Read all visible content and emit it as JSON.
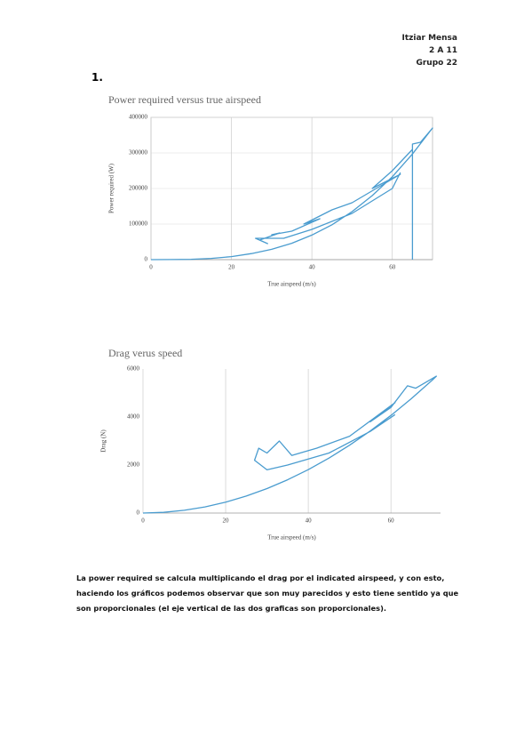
{
  "header": {
    "lines": [
      "Itziar Mensa",
      "2 A 11",
      "Grupo 22"
    ]
  },
  "heading": "1.",
  "chart_data": [
    {
      "type": "line",
      "title": "Power required versus true airspeed",
      "x_label": "True airspeed (m/s)",
      "y_label": "Power required (W)",
      "x": [
        0,
        5,
        10,
        15,
        20,
        25,
        30,
        35,
        40,
        45,
        50,
        55,
        60,
        65,
        70,
        67,
        65,
        65,
        65,
        65,
        60,
        55,
        62,
        50,
        45,
        38,
        42,
        35,
        30,
        32,
        27,
        29,
        26,
        33,
        40,
        50,
        60,
        62
      ],
      "values": [
        0,
        130,
        1100,
        3600,
        8600,
        17000,
        29000,
        46000,
        69000,
        98000,
        135000,
        180000,
        233000,
        297000,
        370000,
        330000,
        325000,
        0,
        null,
        310000,
        250000,
        200000,
        240000,
        160000,
        140000,
        100000,
        115000,
        80000,
        70000,
        75000,
        55000,
        45000,
        60000,
        60000,
        85000,
        130000,
        200000,
        245000
      ],
      "color": "#4a9ccf",
      "xlim": [
        0,
        70
      ],
      "ylim": [
        0,
        400000
      ],
      "xticks": [
        0,
        20,
        40,
        60
      ],
      "yticks": [
        0,
        100000,
        200000,
        300000,
        400000
      ],
      "grid": "both"
    },
    {
      "type": "line",
      "title": "Drag verus speed",
      "x_label": "True airspeed (m/s)",
      "y_label": "Drag (N)",
      "x": [
        0,
        5,
        10,
        15,
        20,
        25,
        30,
        35,
        40,
        45,
        50,
        55,
        60,
        65,
        70,
        71,
        66,
        64,
        60,
        55,
        61,
        50,
        42,
        36,
        33,
        30,
        28,
        27,
        30,
        35,
        45,
        55,
        61
      ],
      "values": [
        0,
        28,
        113,
        254,
        452,
        706,
        1017,
        1384,
        1808,
        2288,
        2825,
        3418,
        4068,
        4774,
        5537,
        5700,
        5200,
        5300,
        4400,
        3800,
        4600,
        3200,
        2700,
        2400,
        3000,
        2500,
        2700,
        2200,
        1800,
        2000,
        2500,
        3400,
        4100
      ],
      "color": "#4a9ccf",
      "xlim": [
        0,
        72
      ],
      "ylim": [
        0,
        6000
      ],
      "xticks": [
        0,
        20,
        40,
        60
      ],
      "yticks": [
        0,
        2000,
        4000,
        6000
      ],
      "grid": "x"
    }
  ],
  "paragraph": {
    "lines": [
      "La power required se calcula multiplicando el drag por el indicated airspeed, y con esto,",
      "haciendo los gráficos podemos observar que son muy parecidos y esto tiene sentido ya que",
      "son proporcionales (el eje vertical de las dos graficas son proporcionales)."
    ]
  }
}
